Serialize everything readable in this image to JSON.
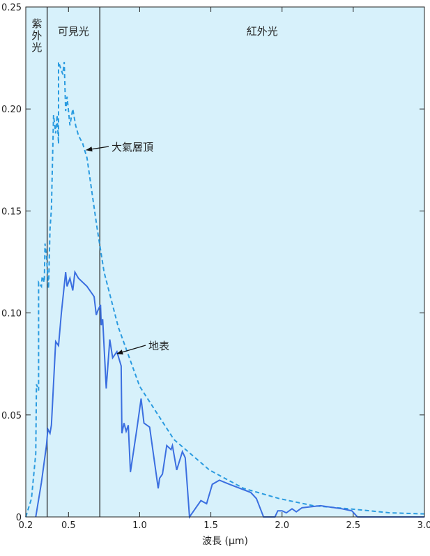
{
  "chart_data": {
    "type": "line",
    "xlabel": "波長 (μm)",
    "xlim": [
      0.2,
      3.0
    ],
    "ylim": [
      0,
      0.25
    ],
    "xticks": [
      0.2,
      0.5,
      {
        "value": 1.0,
        "label": "1.0"
      },
      1.5,
      {
        "value": 2.0,
        "label": "2.0"
      },
      2.5,
      {
        "value": 3.0,
        "label": "3.0"
      }
    ],
    "yticks": [
      0,
      0.05,
      {
        "value": 0.1,
        "label": "0.10"
      },
      0.15,
      {
        "value": 0.2,
        "label": "0.20"
      },
      0.25
    ],
    "regions": [
      {
        "label": "紫外光",
        "vertical": true
      },
      {
        "label": "可見光"
      },
      {
        "label": "紅外光"
      }
    ],
    "boundaries": [
      0.35,
      0.72
    ],
    "background": "#d7f1fb",
    "series": [
      {
        "name": "大氣層頂",
        "color": "#2a9be0",
        "dash": true,
        "x": [
          0.2,
          0.24,
          0.27,
          0.275,
          0.29,
          0.29,
          0.31,
          0.315,
          0.33,
          0.335,
          0.345,
          0.36,
          0.37,
          0.38,
          0.395,
          0.41,
          0.42,
          0.43,
          0.43,
          0.45,
          0.46,
          0.47,
          0.48,
          0.49,
          0.51,
          0.53,
          0.55,
          0.57,
          0.6,
          0.63,
          0.7,
          0.75,
          0.85,
          1.0,
          1.24,
          1.49,
          1.73,
          1.98,
          2.22,
          2.47,
          2.76,
          3.0
        ],
        "values": [
          0,
          0.009,
          0.031,
          0.065,
          0.062,
          0.115,
          0.113,
          0.118,
          0.115,
          0.134,
          0.128,
          0.112,
          0.141,
          0.151,
          0.197,
          0.188,
          0.197,
          0.183,
          0.223,
          0.219,
          0.217,
          0.223,
          0.199,
          0.206,
          0.192,
          0.2,
          0.192,
          0.187,
          0.183,
          0.176,
          0.142,
          0.12,
          0.093,
          0.064,
          0.038,
          0.023,
          0.014,
          0.009,
          0.0055,
          0.004,
          0.002,
          0.0015
        ]
      },
      {
        "name": "地表",
        "color": "#3b6fe0",
        "dash": false,
        "x": [
          0.27,
          0.31,
          0.345,
          0.355,
          0.37,
          0.38,
          0.41,
          0.43,
          0.45,
          0.48,
          0.49,
          0.51,
          0.53,
          0.545,
          0.57,
          0.63,
          0.68,
          0.695,
          0.705,
          0.725,
          0.73,
          0.74,
          0.765,
          0.79,
          0.81,
          0.84,
          0.87,
          0.875,
          0.89,
          0.905,
          0.92,
          0.935,
          0.98,
          1.01,
          1.03,
          1.07,
          1.11,
          1.13,
          1.14,
          1.16,
          1.19,
          1.22,
          1.23,
          1.26,
          1.3,
          1.32,
          1.35,
          1.43,
          1.47,
          1.51,
          1.56,
          1.63,
          1.78,
          1.82,
          1.87,
          1.95,
          1.97,
          2.0,
          2.03,
          2.07,
          2.1,
          2.14,
          2.27,
          2.42,
          2.49,
          2.53,
          3.0
        ],
        "values": [
          0,
          0.017,
          0.035,
          0.043,
          0.041,
          0.045,
          0.086,
          0.084,
          0.1,
          0.12,
          0.113,
          0.117,
          0.111,
          0.12,
          0.117,
          0.113,
          0.108,
          0.099,
          0.101,
          0.104,
          0.094,
          0.097,
          0.063,
          0.087,
          0.078,
          0.081,
          0.074,
          0.041,
          0.046,
          0.042,
          0.045,
          0.022,
          0.043,
          0.058,
          0.046,
          0.044,
          0.024,
          0.014,
          0.019,
          0.021,
          0.035,
          0.033,
          0.035,
          0.023,
          0.032,
          0.029,
          0,
          0.008,
          0.0065,
          0.016,
          0.018,
          0.016,
          0.012,
          0.009,
          0,
          0,
          0.003,
          0.003,
          0.002,
          0.004,
          0.0025,
          0.0045,
          0.0055,
          0.004,
          0.003,
          0,
          0
        ]
      }
    ]
  }
}
